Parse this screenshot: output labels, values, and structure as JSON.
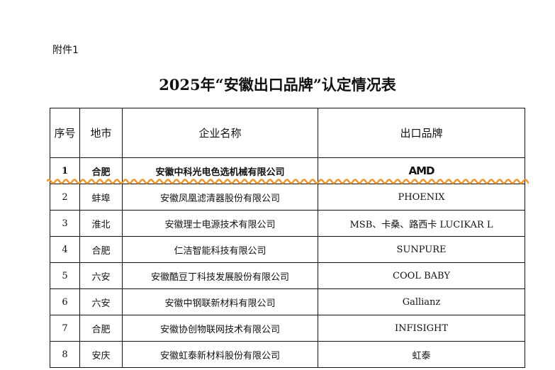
{
  "attachment": "附件1",
  "title": "2025年“安徽出口品牌”认定情况表",
  "headers": [
    "序号",
    "地市",
    "企业名称",
    "出口品牌"
  ],
  "rows": [
    {
      "no": "1",
      "city": "合肥",
      "company": "安徽中科光电色选机械有限公司",
      "brand": "AMD",
      "brand_is_logo": true
    },
    {
      "no": "2",
      "city": "蚌埠",
      "company": "安徽凤凰滤清器股份有限公司",
      "brand": "PHOENIX"
    },
    {
      "no": "3",
      "city": "淮北",
      "company": "安徽理士电源技术有限公司",
      "brand": "MSB、卡桑、路西卡 LUCIKAR L"
    },
    {
      "no": "4",
      "city": "合肥",
      "company": "仁洁智能科技有限公司",
      "brand": "SUNPURE"
    },
    {
      "no": "5",
      "city": "六安",
      "company": "安徽酷豆丁科技发展股份有限公司",
      "brand": "COOL BABY"
    },
    {
      "no": "6",
      "city": "六安",
      "company": "安徽中钢联新材料有限公司",
      "brand": "Gallianz"
    },
    {
      "no": "7",
      "city": "合肥",
      "company": "安徽协创物联网技术有限公司",
      "brand": "INFISIGHT"
    },
    {
      "no": "8",
      "city": "安庆",
      "company": "安徽虹泰新材料股份有限公司",
      "brand": "虹泰"
    }
  ],
  "colors": {
    "wave": "#f0962a"
  }
}
